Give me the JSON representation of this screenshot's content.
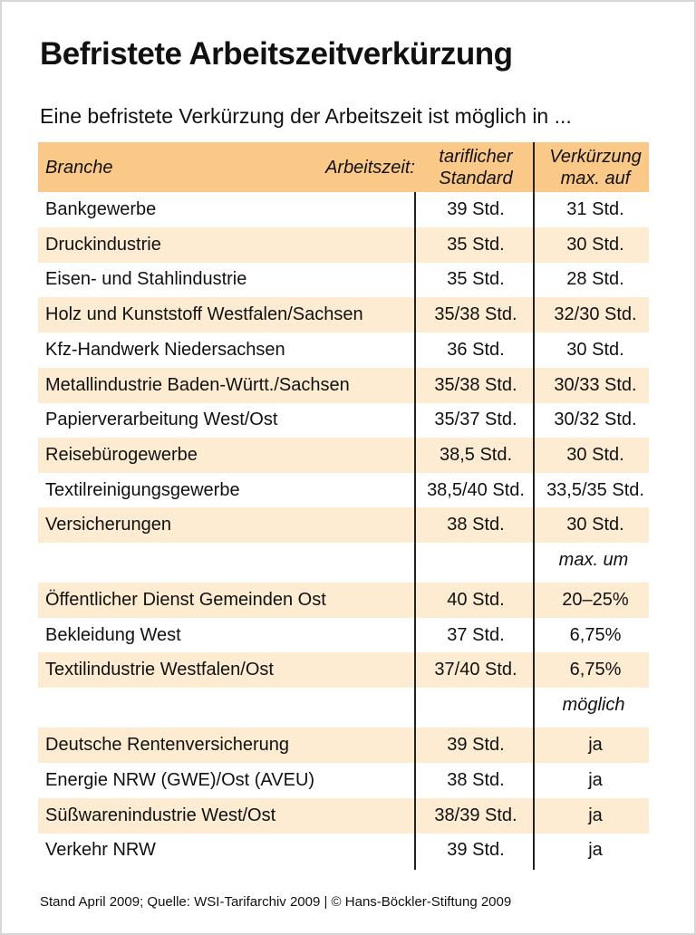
{
  "title": "Befristete Arbeitszeitverkürzung",
  "subtitle": "Eine befristete Verkürzung der Arbeitszeit ist möglich in ...",
  "table": {
    "header": {
      "branche": "Branche",
      "arbeitszeit": "Arbeitszeit:",
      "standard": [
        "tariflicher",
        "Standard"
      ],
      "verkuerzung": [
        "Verkürzung",
        "max. auf"
      ]
    },
    "sections": [
      {
        "rows": [
          [
            "Bankgewerbe",
            "39 Std.",
            "31 Std."
          ],
          [
            "Druckindustrie",
            "35 Std.",
            "30 Std."
          ],
          [
            "Eisen- und Stahlindustrie",
            "35 Std.",
            "28 Std."
          ],
          [
            "Holz und Kunststoff Westfalen/Sachsen",
            "35/38 Std.",
            "32/30 Std."
          ],
          [
            "Kfz-Handwerk Niedersachsen",
            "36 Std.",
            "30 Std."
          ],
          [
            "Metallindustrie Baden-Württ./Sachsen",
            "35/38 Std.",
            "30/33 Std."
          ],
          [
            "Papierverarbeitung West/Ost",
            "35/37 Std.",
            "30/32 Std."
          ],
          [
            "Reisebürogewerbe",
            "38,5 Std.",
            "30 Std."
          ],
          [
            "Textilreinigungsgewerbe",
            "38,5/40 Std.",
            "33,5/35 Std."
          ],
          [
            "Versicherungen",
            "38 Std.",
            "30 Std."
          ]
        ]
      },
      {
        "label": "max. um",
        "rows": [
          [
            "Öffentlicher Dienst Gemeinden Ost",
            "40 Std.",
            "20–25%"
          ],
          [
            "Bekleidung West",
            "37 Std.",
            "6,75%"
          ],
          [
            "Textilindustrie Westfalen/Ost",
            "37/40 Std.",
            "6,75%"
          ]
        ]
      },
      {
        "label": "möglich",
        "rows": [
          [
            "Deutsche Rentenversicherung",
            "39 Std.",
            "ja"
          ],
          [
            "Energie NRW (GWE)/Ost (AVEU)",
            "38 Std.",
            "ja"
          ],
          [
            "Süßwarenindustrie West/Ost",
            "38/39 Std.",
            "ja"
          ],
          [
            "Verkehr NRW",
            "39 Std.",
            "ja"
          ]
        ]
      }
    ]
  },
  "footer": "Stand April 2009; Quelle: WSI-Tarifarchiv 2009 | © Hans-Böckler-Stiftung 2009"
}
